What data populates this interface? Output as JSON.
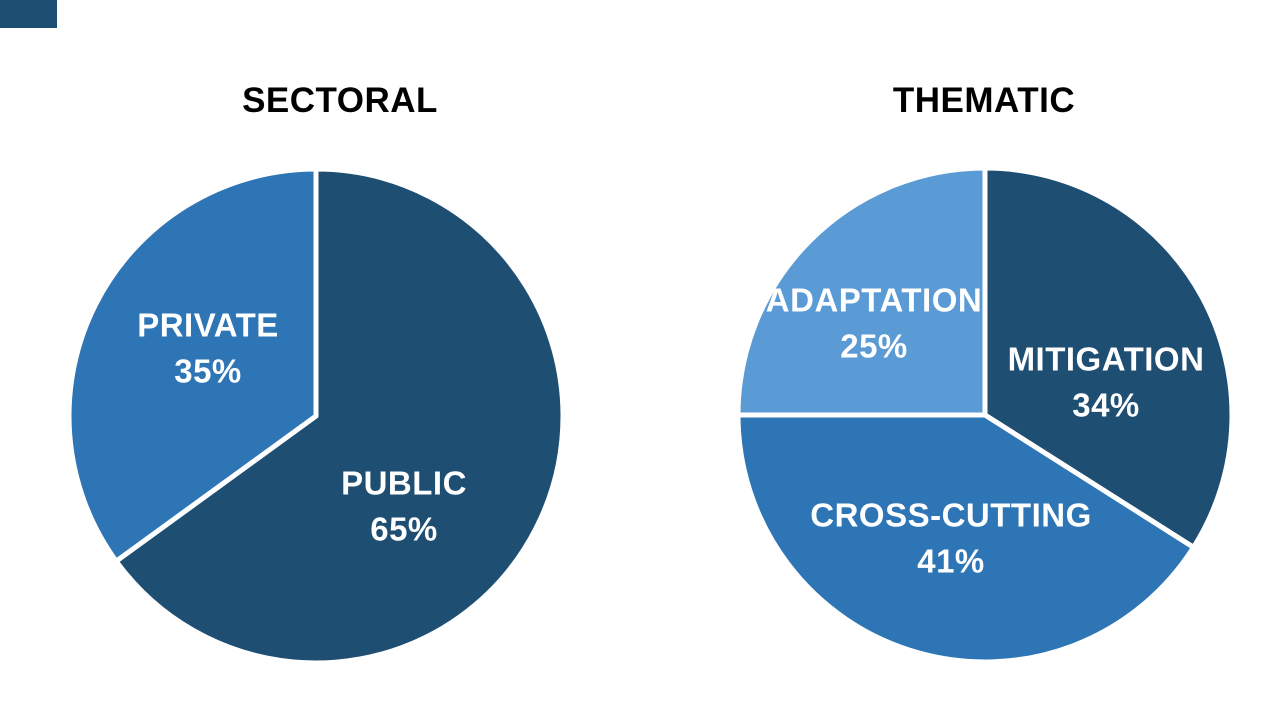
{
  "page": {
    "background": "#ffffff",
    "palette": {
      "dark_blue": "#1f4e73",
      "medium_blue": "#2e75b6",
      "light_blue": "#5b9bd5",
      "title_text": "#000000",
      "slice_label_text": "#ffffff"
    }
  },
  "corner_accent": {
    "color": "#1f4e73"
  },
  "chart_data": [
    {
      "type": "pie",
      "title": "SECTORAL",
      "legend_position": "none",
      "labels_position": "inside",
      "start_angle": "top",
      "direction": "clockwise",
      "categories": [
        "PUBLIC",
        "PRIVATE"
      ],
      "values": [
        65,
        35
      ],
      "slices": [
        {
          "label": "PUBLIC",
          "value": 65,
          "pct_text": "65%",
          "color": "#1f4e73",
          "label_x": 338,
          "label_y": 340
        },
        {
          "label": "PRIVATE",
          "value": 35,
          "pct_text": "35%",
          "color": "#2e75b6",
          "label_x": 142,
          "label_y": 182
        }
      ]
    },
    {
      "type": "pie",
      "title": "THEMATIC",
      "legend_position": "none",
      "labels_position": "inside",
      "start_angle": "top",
      "direction": "clockwise",
      "categories": [
        "MITIGATION",
        "CROSS-CUTTING",
        "ADAPTATION"
      ],
      "values": [
        34,
        41,
        25
      ],
      "slices": [
        {
          "label": "MITIGATION",
          "value": 34,
          "pct_text": "34%",
          "color": "#1f4e73",
          "label_x": 371,
          "label_y": 217
        },
        {
          "label": "CROSS-CUTTING",
          "value": 41,
          "pct_text": "41%",
          "color": "#2e75b6",
          "label_x": 216,
          "label_y": 373
        },
        {
          "label": "ADAPTATION",
          "value": 25,
          "pct_text": "25%",
          "color": "#5b9bd5",
          "label_x": 139,
          "label_y": 158
        }
      ]
    }
  ]
}
